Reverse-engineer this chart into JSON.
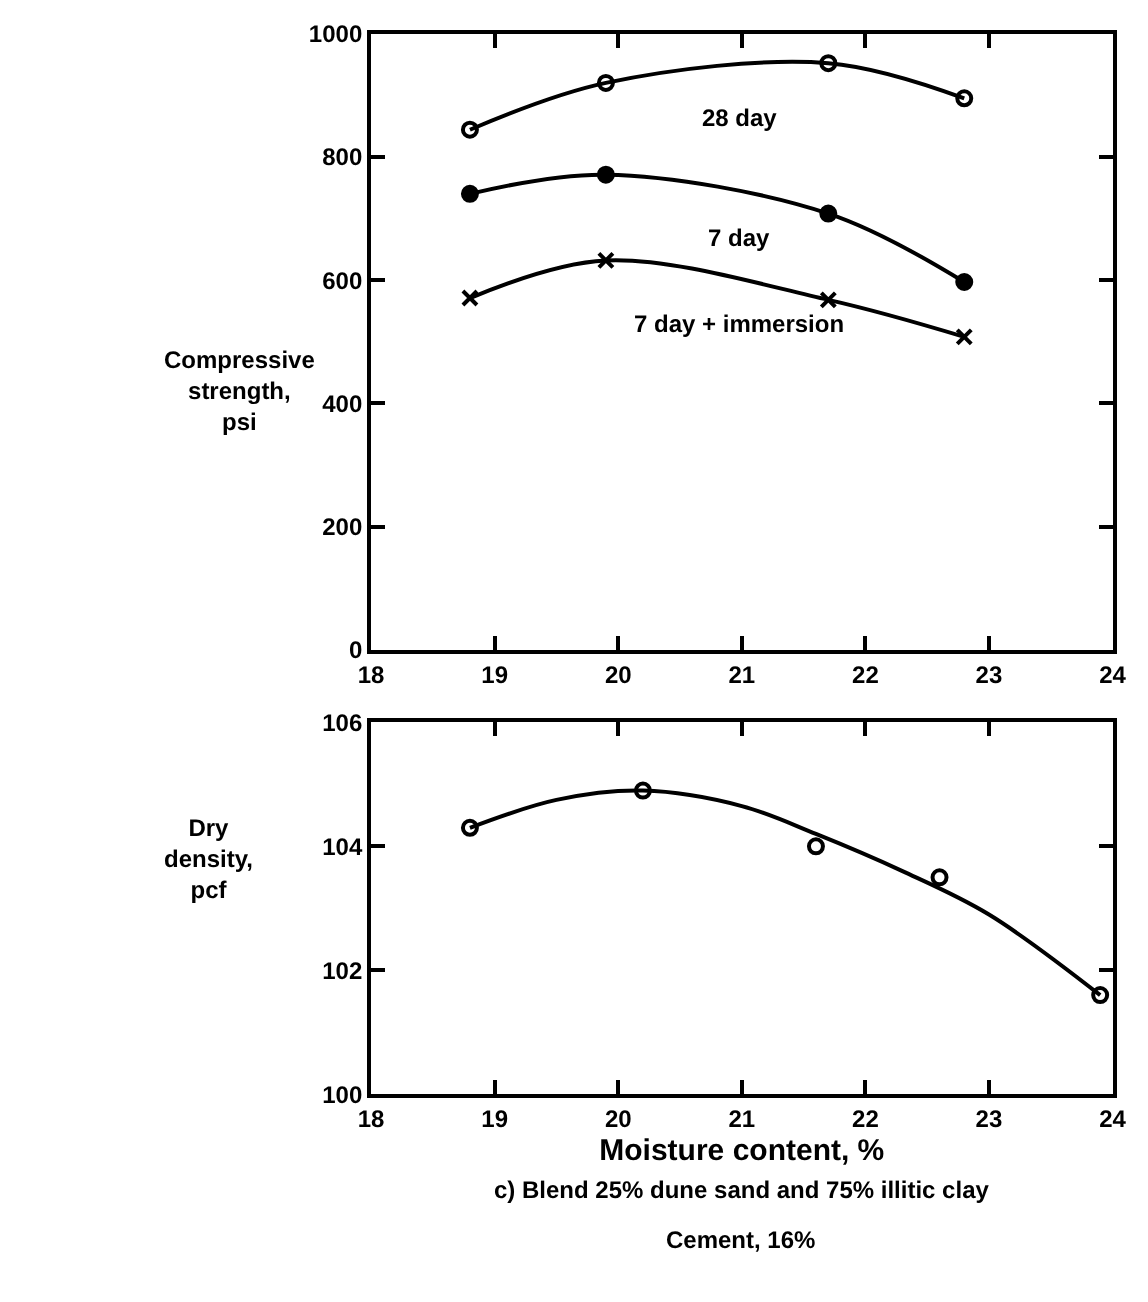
{
  "chart_data": [
    {
      "type": "line",
      "ylabel": "Compressive strength, psi",
      "x": [
        18.8,
        19.9,
        21.7,
        22.8
      ],
      "series": [
        {
          "name": "28 day",
          "color": "#000000",
          "marker": "circle-open",
          "values": [
            844,
            920,
            952,
            895
          ]
        },
        {
          "name": "7 day",
          "color": "#000000",
          "marker": "circle",
          "values": [
            740,
            771,
            708,
            597
          ]
        },
        {
          "name": "7 day + immersion",
          "color": "#000000",
          "marker": "x",
          "values": [
            571,
            632,
            568,
            508
          ]
        }
      ],
      "xlim": [
        18,
        24
      ],
      "xticks": [
        18,
        19,
        20,
        21,
        22,
        23,
        24
      ],
      "ylim": [
        0,
        1000
      ],
      "yticks": [
        0,
        200,
        400,
        600,
        800,
        1000
      ],
      "line_style": "solid"
    },
    {
      "type": "scatter",
      "ylabel": "Dry density, pcf",
      "xlabel": "Moisture content, %",
      "series": [
        {
          "type": "scatter",
          "color": "#000000",
          "marker": "circle-open",
          "x": [
            18.8,
            20.2,
            21.6,
            22.6,
            23.9
          ],
          "values": [
            104.3,
            104.9,
            104.0,
            103.5,
            101.6
          ]
        },
        {
          "type": "line",
          "color": "#000000",
          "marker": "none",
          "x": [
            18.8,
            19.5,
            20.2,
            21.0,
            21.6,
            22.3,
            23.0,
            23.9
          ],
          "values": [
            104.3,
            104.75,
            104.9,
            104.65,
            104.2,
            103.6,
            102.9,
            101.6
          ]
        }
      ],
      "xlim": [
        18,
        24
      ],
      "xticks": [
        18,
        19,
        20,
        21,
        22,
        23,
        24
      ],
      "ylim": [
        100,
        106
      ],
      "yticks": [
        100,
        102,
        104,
        106
      ],
      "annotations": [
        "c) Blend 25% dune sand and 75% illitic clay",
        "Cement, 16%"
      ]
    }
  ]
}
